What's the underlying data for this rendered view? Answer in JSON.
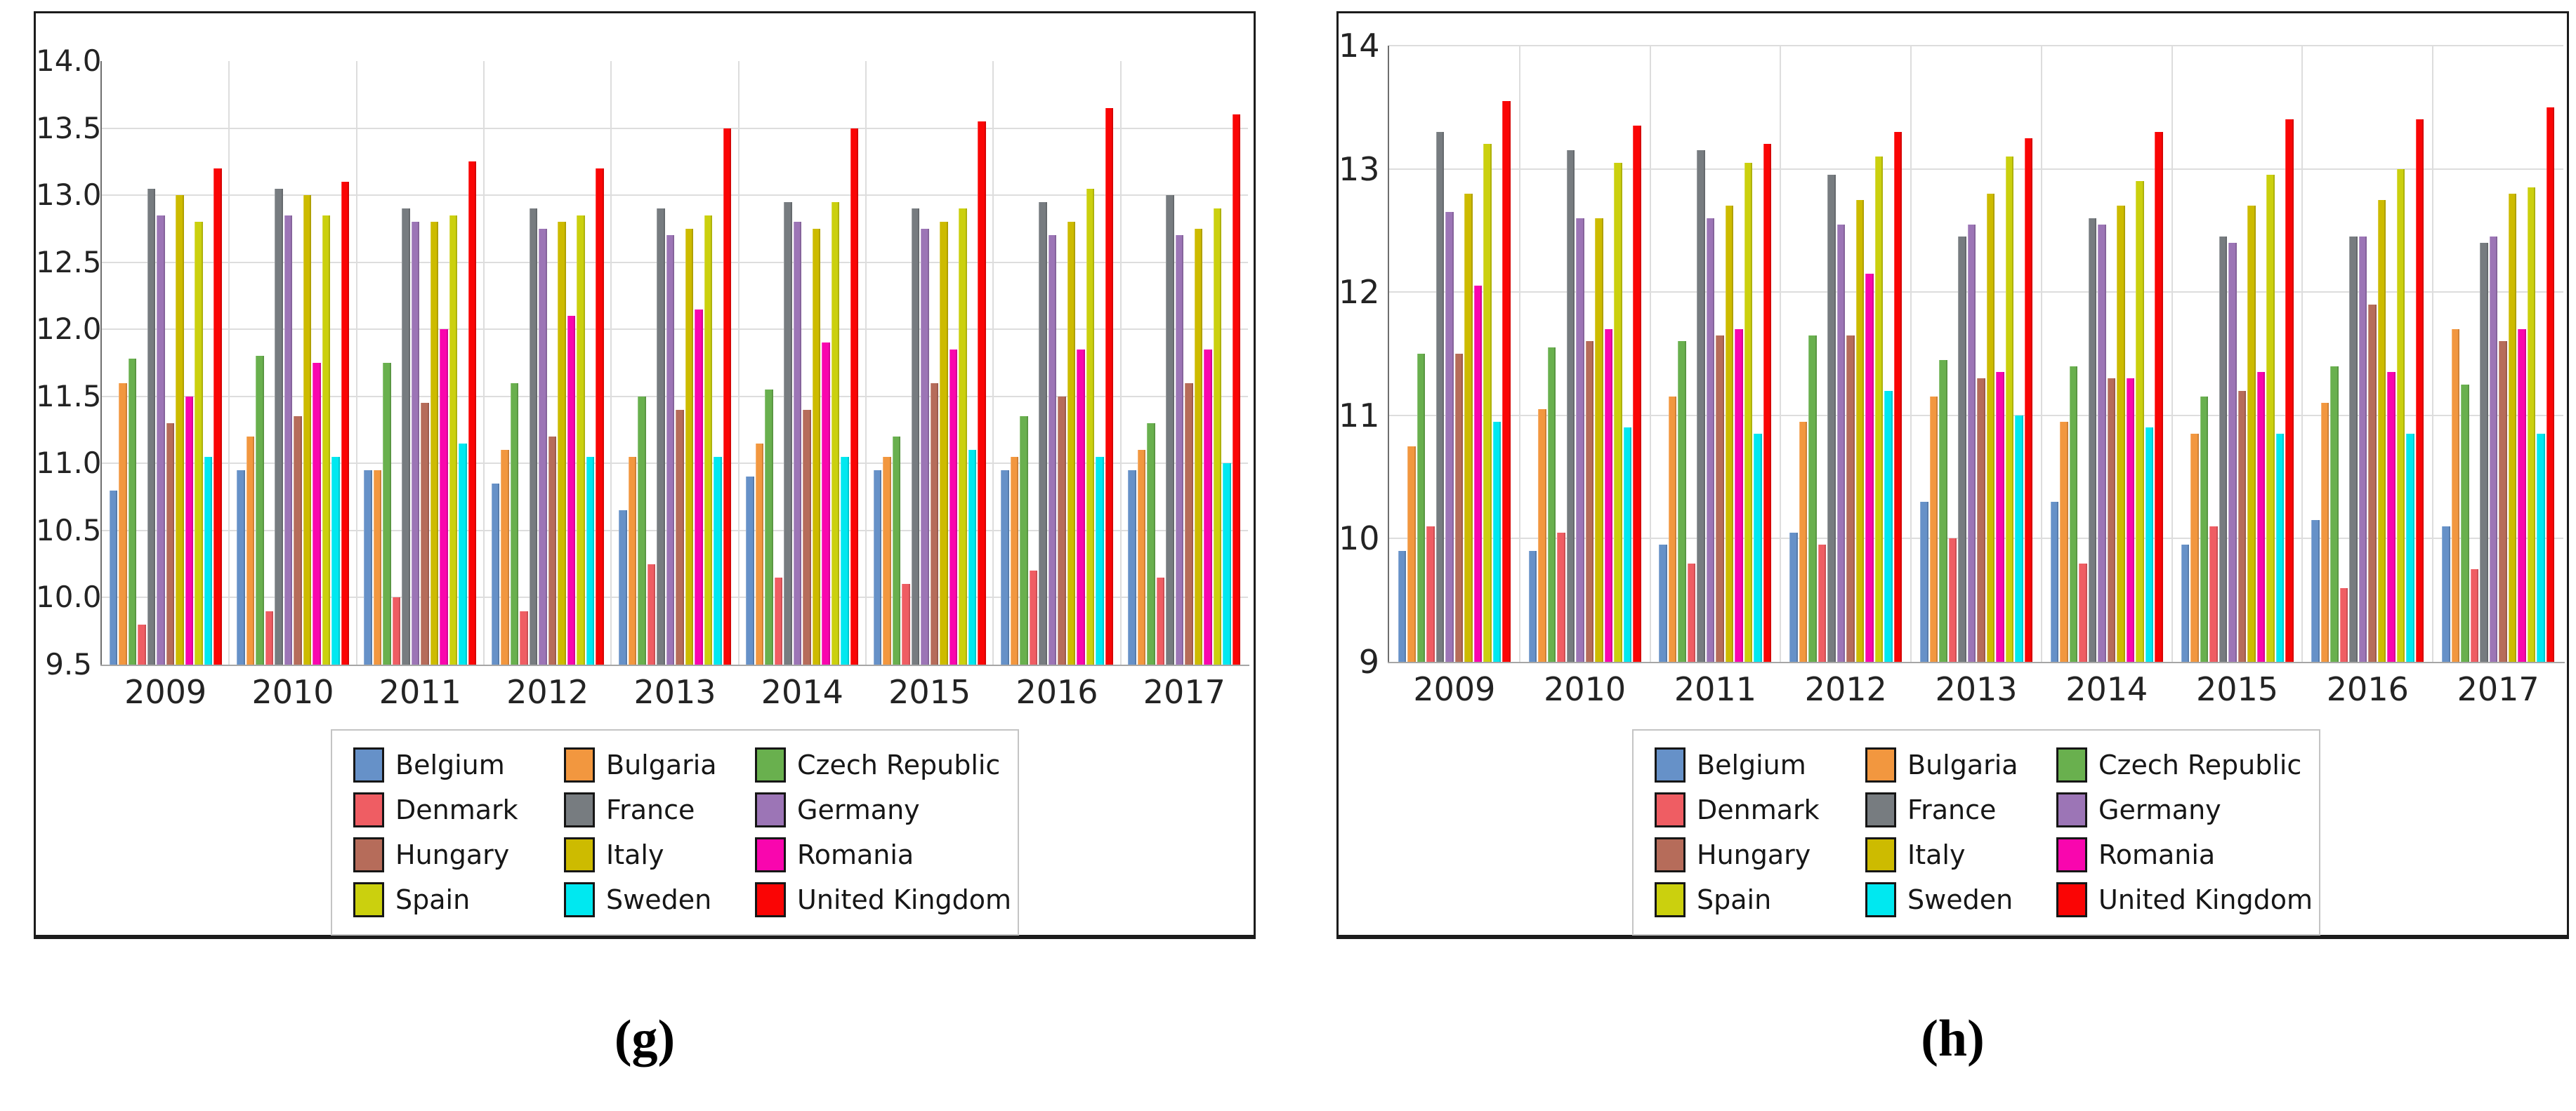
{
  "figure": {
    "captions": {
      "g": "(g)",
      "h": "(h)"
    }
  },
  "chart_data": [
    {
      "type": "bar",
      "panel": "g",
      "title": "",
      "xlabel": "",
      "ylabel": "",
      "grid": true,
      "legend_position": "bottom-center",
      "ylim": [
        9.5,
        14.0
      ],
      "yticks": [
        "14.0",
        "13.5",
        "13.0",
        "12.5",
        "12.0",
        "11.5",
        "11.0",
        "10.5",
        "10.0",
        "9.5"
      ],
      "categories": [
        "2009",
        "2010",
        "2011",
        "2012",
        "2013",
        "2014",
        "2015",
        "2016",
        "2017"
      ],
      "series": [
        {
          "name": "Belgium",
          "color": "#6691C8",
          "values": [
            10.8,
            10.95,
            10.95,
            10.85,
            10.65,
            10.9,
            10.95,
            10.95,
            10.95
          ]
        },
        {
          "name": "Bulgaria",
          "color": "#F2973F",
          "values": [
            11.6,
            11.2,
            10.95,
            11.1,
            11.05,
            11.15,
            11.05,
            11.05,
            11.1
          ]
        },
        {
          "name": "Czech Republic",
          "color": "#69B04E",
          "values": [
            11.78,
            11.8,
            11.75,
            11.6,
            11.5,
            11.55,
            11.2,
            11.35,
            11.3
          ]
        },
        {
          "name": "Denmark",
          "color": "#EF5D63",
          "values": [
            9.8,
            9.9,
            10.0,
            9.9,
            10.25,
            10.15,
            10.1,
            10.2,
            10.15
          ]
        },
        {
          "name": "France",
          "color": "#777C80",
          "values": [
            13.05,
            13.05,
            12.9,
            12.9,
            12.9,
            12.95,
            12.9,
            12.95,
            13.0
          ]
        },
        {
          "name": "Germany",
          "color": "#9C75B6",
          "values": [
            12.85,
            12.85,
            12.8,
            12.75,
            12.7,
            12.8,
            12.75,
            12.7,
            12.7
          ]
        },
        {
          "name": "Hungary",
          "color": "#B66C5A",
          "values": [
            11.3,
            11.35,
            11.45,
            11.2,
            11.4,
            11.4,
            11.6,
            11.5,
            11.6
          ]
        },
        {
          "name": "Italy",
          "color": "#CDBB00",
          "values": [
            13.0,
            13.0,
            12.8,
            12.8,
            12.75,
            12.75,
            12.8,
            12.8,
            12.75
          ]
        },
        {
          "name": "Romania",
          "color": "#F906AE",
          "values": [
            11.5,
            11.75,
            12.0,
            12.1,
            12.15,
            11.9,
            11.85,
            11.85,
            11.85
          ]
        },
        {
          "name": "Spain",
          "color": "#CBD00E",
          "values": [
            12.8,
            12.85,
            12.85,
            12.85,
            12.85,
            12.95,
            12.9,
            13.05,
            12.9
          ]
        },
        {
          "name": "Sweden",
          "color": "#00E8F0",
          "values": [
            11.05,
            11.05,
            11.15,
            11.05,
            11.05,
            11.05,
            11.1,
            11.05,
            11.0
          ]
        },
        {
          "name": "United Kingdom",
          "color": "#FA0505",
          "values": [
            13.2,
            13.1,
            13.25,
            13.2,
            13.5,
            13.5,
            13.55,
            13.65,
            13.6
          ]
        }
      ]
    },
    {
      "type": "bar",
      "panel": "h",
      "title": "",
      "xlabel": "",
      "ylabel": "",
      "grid": true,
      "legend_position": "bottom-center",
      "ylim": [
        9,
        14
      ],
      "yticks": [
        "14",
        "13",
        "12",
        "11",
        "10",
        "9"
      ],
      "categories": [
        "2009",
        "2010",
        "2011",
        "2012",
        "2013",
        "2014",
        "2015",
        "2016",
        "2017"
      ],
      "series": [
        {
          "name": "Belgium",
          "color": "#6691C8",
          "values": [
            9.9,
            9.9,
            9.95,
            10.05,
            10.3,
            10.3,
            9.95,
            10.15,
            10.1
          ]
        },
        {
          "name": "Bulgaria",
          "color": "#F2973F",
          "values": [
            10.75,
            11.05,
            11.15,
            10.95,
            11.15,
            10.95,
            10.85,
            11.1,
            11.7
          ]
        },
        {
          "name": "Czech Republic",
          "color": "#69B04E",
          "values": [
            11.5,
            11.55,
            11.6,
            11.65,
            11.45,
            11.4,
            11.15,
            11.4,
            11.25
          ]
        },
        {
          "name": "Denmark",
          "color": "#EF5D63",
          "values": [
            10.1,
            10.05,
            9.8,
            9.95,
            10.0,
            9.8,
            10.1,
            9.6,
            9.75
          ]
        },
        {
          "name": "France",
          "color": "#777C80",
          "values": [
            13.3,
            13.15,
            13.15,
            12.95,
            12.45,
            12.6,
            12.45,
            12.45,
            12.4
          ]
        },
        {
          "name": "Germany",
          "color": "#9C75B6",
          "values": [
            12.65,
            12.6,
            12.6,
            12.55,
            12.55,
            12.55,
            12.4,
            12.45,
            12.45
          ]
        },
        {
          "name": "Hungary",
          "color": "#B66C5A",
          "values": [
            11.5,
            11.6,
            11.65,
            11.65,
            11.3,
            11.3,
            11.2,
            11.9,
            11.6
          ]
        },
        {
          "name": "Italy",
          "color": "#CDBB00",
          "values": [
            12.8,
            12.6,
            12.7,
            12.75,
            12.8,
            12.7,
            12.7,
            12.75,
            12.8
          ]
        },
        {
          "name": "Romania",
          "color": "#F906AE",
          "values": [
            12.05,
            11.7,
            11.7,
            12.15,
            11.35,
            11.3,
            11.35,
            11.35,
            11.7
          ]
        },
        {
          "name": "Spain",
          "color": "#CBD00E",
          "values": [
            13.2,
            13.05,
            13.05,
            13.1,
            13.1,
            12.9,
            12.95,
            13.0,
            12.85
          ]
        },
        {
          "name": "Sweden",
          "color": "#00E8F0",
          "values": [
            10.95,
            10.9,
            10.85,
            11.2,
            11.0,
            10.9,
            10.85,
            10.85,
            10.85
          ]
        },
        {
          "name": "United Kingdom",
          "color": "#FA0505",
          "values": [
            13.55,
            13.35,
            13.2,
            13.3,
            13.25,
            13.3,
            13.4,
            13.4,
            13.5
          ]
        }
      ]
    }
  ]
}
